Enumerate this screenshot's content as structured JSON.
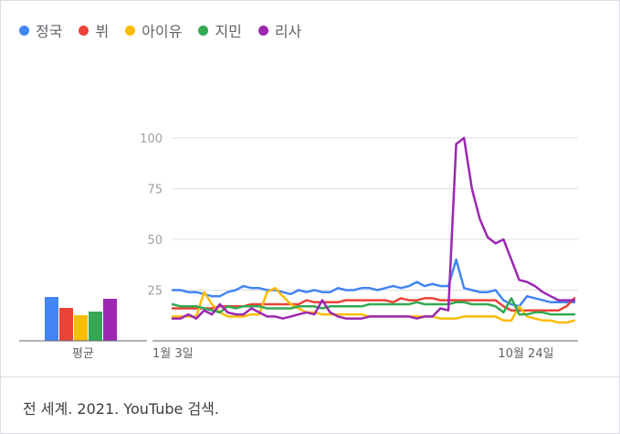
{
  "chart_data": [
    {
      "type": "bar",
      "categories": [
        "정국",
        "뷔",
        "아이유",
        "지민",
        "리사"
      ],
      "values": [
        24,
        18,
        14,
        16,
        23
      ],
      "xlabel": "평균",
      "colors": [
        "#4285f4",
        "#ea4335",
        "#fbbc04",
        "#34a853",
        "#9c27b0"
      ]
    },
    {
      "type": "line",
      "ylim": [
        0,
        100
      ],
      "yticks": [
        25,
        50,
        75,
        100
      ],
      "xticks": [
        "1월 3일",
        "10월 24일"
      ],
      "grid": true,
      "series": [
        {
          "name": "정국",
          "color": "#4285f4",
          "values": [
            25,
            25,
            24,
            24,
            23,
            22,
            22,
            24,
            25,
            27,
            26,
            26,
            25,
            25,
            24,
            23,
            25,
            24,
            25,
            24,
            24,
            26,
            25,
            25,
            26,
            26,
            25,
            26,
            27,
            26,
            27,
            29,
            27,
            28,
            27,
            27,
            40,
            26,
            25,
            24,
            24,
            25,
            20,
            18,
            17,
            22,
            21,
            20,
            19,
            19,
            19,
            19
          ]
        },
        {
          "name": "뷔",
          "color": "#ea4335",
          "values": [
            16,
            16,
            16,
            16,
            16,
            16,
            17,
            17,
            17,
            17,
            18,
            18,
            18,
            18,
            18,
            18,
            18,
            20,
            19,
            19,
            19,
            19,
            20,
            20,
            20,
            20,
            20,
            20,
            19,
            21,
            20,
            20,
            21,
            21,
            20,
            20,
            20,
            20,
            20,
            20,
            20,
            20,
            17,
            15,
            15,
            15,
            15,
            15,
            15,
            15,
            17,
            21
          ]
        },
        {
          "name": "아이유",
          "color": "#fbbc04",
          "values": [
            12,
            12,
            12,
            12,
            24,
            18,
            14,
            12,
            12,
            12,
            13,
            13,
            24,
            26,
            22,
            18,
            16,
            14,
            14,
            13,
            13,
            13,
            13,
            13,
            13,
            12,
            12,
            12,
            12,
            12,
            12,
            12,
            12,
            12,
            11,
            11,
            11,
            12,
            12,
            12,
            12,
            12,
            10,
            10,
            17,
            12,
            11,
            10,
            10,
            9,
            9,
            10
          ]
        },
        {
          "name": "지민",
          "color": "#34a853",
          "values": [
            18,
            17,
            17,
            17,
            16,
            15,
            14,
            17,
            16,
            17,
            17,
            17,
            16,
            16,
            16,
            16,
            17,
            17,
            17,
            16,
            17,
            17,
            17,
            17,
            17,
            18,
            18,
            18,
            18,
            18,
            18,
            19,
            18,
            18,
            18,
            18,
            19,
            19,
            18,
            18,
            18,
            17,
            14,
            21,
            13,
            13,
            14,
            14,
            13,
            13,
            13,
            13
          ]
        },
        {
          "name": "리사",
          "color": "#9c27b0",
          "values": [
            11,
            11,
            13,
            11,
            15,
            13,
            18,
            14,
            13,
            13,
            16,
            14,
            12,
            12,
            11,
            12,
            13,
            14,
            13,
            20,
            14,
            12,
            11,
            11,
            11,
            12,
            12,
            12,
            12,
            12,
            12,
            11,
            12,
            12,
            16,
            15,
            97,
            100,
            75,
            60,
            51,
            48,
            50,
            40,
            30,
            29,
            27,
            24,
            22,
            20,
            20,
            20
          ]
        }
      ]
    }
  ],
  "footer": "전 세계. 2021. YouTube 검색."
}
